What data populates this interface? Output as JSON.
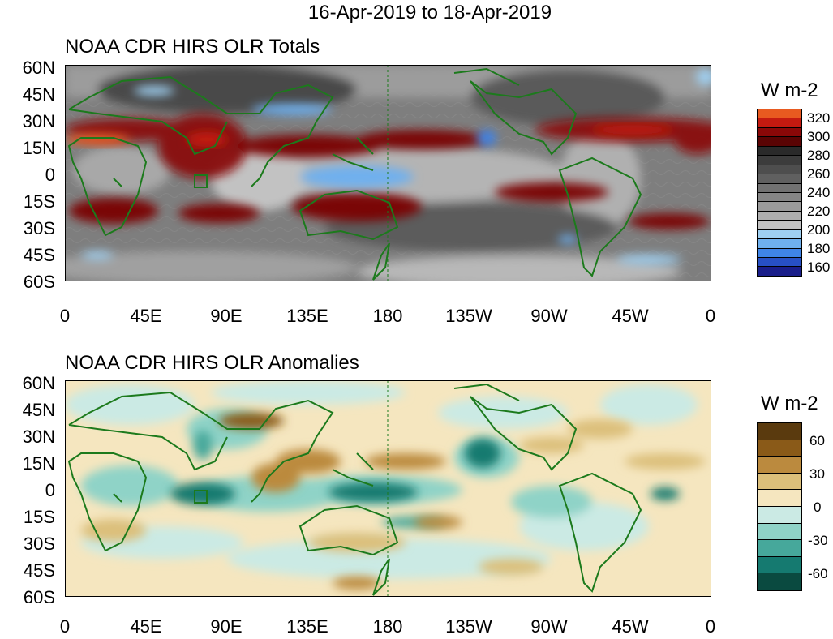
{
  "header": {
    "date_range": "16-Apr-2019 to 18-Apr-2019"
  },
  "panels": [
    {
      "id": "totals",
      "title": "NOAA CDR HIRS OLR Totals",
      "y_labels": [
        "60N",
        "45N",
        "30N",
        "15N",
        "0",
        "15S",
        "30S",
        "45S",
        "60S"
      ],
      "x_labels": [
        "0",
        "45E",
        "90E",
        "135E",
        "180",
        "135W",
        "90W",
        "45W",
        "0"
      ],
      "colorbar": {
        "unit": "W m-2",
        "labels": [
          "320",
          "300",
          "280",
          "260",
          "240",
          "220",
          "200",
          "180",
          "160"
        ],
        "colors": [
          "#e85a20",
          "#c41a10",
          "#8a0808",
          "#5a0404",
          "#2a2a2a",
          "#3c3c3c",
          "#4e4e4e",
          "#606060",
          "#727272",
          "#868686",
          "#9a9a9a",
          "#aeaeae",
          "#c2c2c2",
          "#9fd0f2",
          "#6fb0ee",
          "#3f84e6",
          "#2750c4",
          "#1a1e8a"
        ]
      }
    },
    {
      "id": "anomalies",
      "title": "NOAA CDR HIRS OLR Anomalies",
      "y_labels": [
        "60N",
        "45N",
        "30N",
        "15N",
        "0",
        "15S",
        "30S",
        "45S",
        "60S"
      ],
      "x_labels": [
        "0",
        "45E",
        "90E",
        "135E",
        "180",
        "135W",
        "90W",
        "45W",
        "0"
      ],
      "colorbar": {
        "unit": "W m-2",
        "labels": [
          "60",
          "30",
          "0",
          "-30",
          "-60"
        ],
        "colors": [
          "#5a3a0e",
          "#8a5a18",
          "#bb8a3e",
          "#dcbf7a",
          "#f5e6bf",
          "#cbeae4",
          "#8fd3c7",
          "#46a89b",
          "#157a70",
          "#0a4a40"
        ]
      }
    }
  ]
}
